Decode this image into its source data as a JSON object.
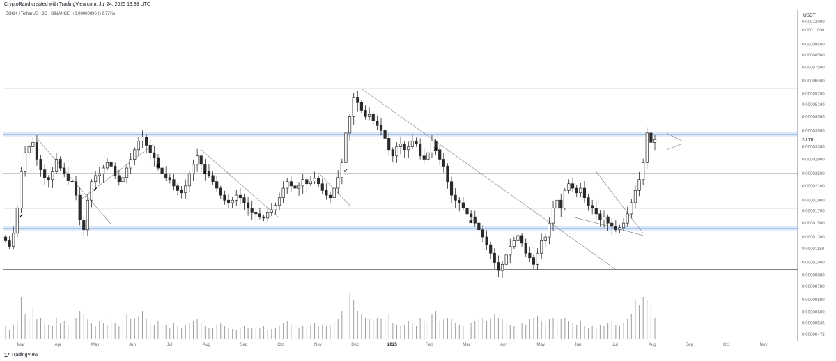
{
  "header": {
    "author_line": "CryptoRand created with TradingView.com, Jul 24, 2025 13:39 UTC"
  },
  "legend": {
    "symbol_line": "BONK / TetherUS · 3D · BINANCE",
    "change": "+0.00000096 (+2.77%)"
  },
  "footer": {
    "logo": "17",
    "brand": "TradingView"
  },
  "colors": {
    "bull": "#ffffff",
    "bear": "#2a2a2a",
    "wick": "#2a2a2a",
    "level_blue": "#9ec1ee",
    "level_gray": "#6b6e78",
    "trend": "#8a8d96",
    "volume": "#9e9e9e"
  },
  "chart_data": {
    "type": "candlestick",
    "price_unit": "USDT",
    "time_range": [
      "2024-03",
      "2025-07-24"
    ],
    "y_axis_labels": [
      "0.00012000",
      "0.00011000",
      "0.00009500",
      "0.00008500",
      "0.00007500",
      "0.00006500",
      "0.00005700",
      "0.00005100",
      "0.00004500",
      "0.00003900",
      "0.00003300",
      "0.00002900",
      "0.00002500",
      "0.00002200",
      "0.00001900",
      "0.00001700",
      "0.00001500",
      "0.00001300",
      "0.00001150",
      "0.00001000",
      "0.00000880",
      "0.00000780",
      "0.00000680",
      "0.00000600",
      "0.00000535",
      "0.00000475"
    ],
    "x_axis_labels": [
      "Mar",
      "Apr",
      "May",
      "Jun",
      "Jul",
      "Aug",
      "Sep",
      "Oct",
      "Nov",
      "Dec",
      "2025",
      "Feb",
      "Mar",
      "Apr",
      "May",
      "Jun",
      "Jul",
      "Aug",
      "Sep",
      "Oct",
      "Nov"
    ],
    "x_axis_bold": "2025",
    "countdown": "2d 11h",
    "last_price": 3.55e-05,
    "horizontal_levels": [
      {
        "price": 6e-05,
        "style": "gray"
      },
      {
        "price": 3.75e-05,
        "style": "blue"
      },
      {
        "price": 2.5e-05,
        "style": "gray"
      },
      {
        "price": 1.75e-05,
        "style": "gray"
      },
      {
        "price": 1.42e-05,
        "style": "blue"
      },
      {
        "price": 9.3e-06,
        "style": "gray"
      }
    ],
    "closes": [
      1.25e-05,
      1.18e-05,
      1.35e-05,
      1.75e-05,
      2.55e-05,
      3.1e-05,
      3.3e-05,
      3.45e-05,
      2.9e-05,
      2.6e-05,
      2.4e-05,
      2.35e-05,
      2.55e-05,
      2.9e-05,
      2.65e-05,
      2.5e-05,
      2.32e-05,
      2.3e-05,
      2e-05,
      1.55e-05,
      1.4e-05,
      1.9e-05,
      2.3e-05,
      2.45e-05,
      2.5e-05,
      2.65e-05,
      2.8e-05,
      2.7e-05,
      2.45e-05,
      2.3e-05,
      2.4e-05,
      2.65e-05,
      2.9e-05,
      3.2e-05,
      3.5e-05,
      3.65e-05,
      3.35e-05,
      3.1e-05,
      2.95e-05,
      2.65e-05,
      2.5e-05,
      2.4e-05,
      2.35e-05,
      2.2e-05,
      2.1e-05,
      2.05e-05,
      2.2e-05,
      2.5e-05,
      2.75e-05,
      3e-05,
      2.75e-05,
      2.55e-05,
      2.45e-05,
      2.3e-05,
      2.15e-05,
      2e-05,
      1.9e-05,
      1.85e-05,
      1.9e-05,
      2e-05,
      1.95e-05,
      1.85e-05,
      1.75e-05,
      1.68e-05,
      1.65e-05,
      1.6e-05,
      1.58e-05,
      1.68e-05,
      1.72e-05,
      1.8e-05,
      1.95e-05,
      2.15e-05,
      2.3e-05,
      2.2e-05,
      2.15e-05,
      2.2e-05,
      2.35e-05,
      2.25e-05,
      2.32e-05,
      2.38e-05,
      2.25e-05,
      2.1e-05,
      2e-05,
      1.95e-05,
      2.15e-05,
      2.4e-05,
      2.8e-05,
      3.8e-05,
      4.5e-05,
      5.5e-05,
      5.2e-05,
      4.8e-05,
      4.5e-05,
      4.6e-05,
      4.3e-05,
      4.1e-05,
      3.9e-05,
      3.6e-05,
      3.2e-05,
      3e-05,
      3.3e-05,
      3.4e-05,
      3.2e-05,
      3.3e-05,
      3.5e-05,
      3.4e-05,
      3e-05,
      2.9e-05,
      3.1e-05,
      3.5e-05,
      3.2e-05,
      2.9e-05,
      2.7e-05,
      2.3e-05,
      2e-05,
      1.9e-05,
      1.85e-05,
      1.75e-05,
      1.65e-05,
      1.6e-05,
      1.5e-05,
      1.4e-05,
      1.3e-05,
      1.2e-05,
      1.1e-05,
      1e-05,
      9.2e-06,
      9.8e-06,
      1.08e-05,
      1.18e-05,
      1.25e-05,
      1.32e-05,
      1.22e-05,
      1.1e-05,
      1.05e-05,
      9.8e-06,
      1.1e-05,
      1.25e-05,
      1.3e-05,
      1.5e-05,
      1.75e-05,
      1.9e-05,
      1.75e-05,
      2.1e-05,
      2.25e-05,
      2.15e-05,
      2.05e-05,
      2.15e-05,
      1.95e-05,
      1.8e-05,
      1.75e-05,
      1.65e-05,
      1.55e-05,
      1.6e-05,
      1.5e-05,
      1.45e-05,
      1.4e-05,
      1.43e-05,
      1.5e-05,
      1.65e-05,
      1.85e-05,
      2.1e-05,
      2.35e-05,
      2.8e-05,
      3.8e-05,
      3.45e-05,
      3.55e-05
    ],
    "volume_relative": [
      0.18,
      0.12,
      0.2,
      0.25,
      0.6,
      0.35,
      0.3,
      0.45,
      0.28,
      0.3,
      0.22,
      0.2,
      0.18,
      0.3,
      0.22,
      0.25,
      0.2,
      0.22,
      0.3,
      0.4,
      0.35,
      0.28,
      0.22,
      0.18,
      0.25,
      0.22,
      0.2,
      0.3,
      0.22,
      0.18,
      0.25,
      0.35,
      0.28,
      0.3,
      0.32,
      0.4,
      0.28,
      0.22,
      0.2,
      0.25,
      0.18,
      0.2,
      0.15,
      0.22,
      0.18,
      0.16,
      0.2,
      0.22,
      0.25,
      0.28,
      0.22,
      0.18,
      0.16,
      0.15,
      0.2,
      0.22,
      0.18,
      0.15,
      0.14,
      0.12,
      0.15,
      0.18,
      0.16,
      0.15,
      0.14,
      0.15,
      0.18,
      0.12,
      0.14,
      0.15,
      0.18,
      0.22,
      0.25,
      0.2,
      0.18,
      0.16,
      0.18,
      0.15,
      0.2,
      0.22,
      0.18,
      0.2,
      0.18,
      0.2,
      0.25,
      0.28,
      0.4,
      0.6,
      0.65,
      0.55,
      0.4,
      0.35,
      0.3,
      0.28,
      0.25,
      0.3,
      0.28,
      0.3,
      0.35,
      0.22,
      0.2,
      0.18,
      0.2,
      0.25,
      0.22,
      0.18,
      0.3,
      0.25,
      0.22,
      0.35,
      0.4,
      0.25,
      0.28,
      0.3,
      0.28,
      0.22,
      0.2,
      0.18,
      0.2,
      0.22,
      0.25,
      0.28,
      0.3,
      0.25,
      0.28,
      0.35,
      0.3,
      0.28,
      0.22,
      0.2,
      0.18,
      0.25,
      0.22,
      0.2,
      0.28,
      0.3,
      0.32,
      0.25,
      0.22,
      0.28,
      0.3,
      0.25,
      0.28,
      0.3,
      0.25,
      0.22,
      0.2,
      0.25,
      0.18,
      0.16,
      0.18,
      0.15,
      0.2,
      0.18,
      0.22,
      0.25,
      0.2,
      0.18,
      0.22,
      0.28,
      0.35,
      0.55,
      0.48,
      0.6,
      0.55,
      0.48,
      0.3
    ],
    "markers": [
      {
        "symbol": "✔",
        "bar": 3
      },
      {
        "symbol": "✔",
        "bar": 22
      },
      {
        "symbol": "✖",
        "bar": 38
      },
      {
        "symbol": "✖",
        "bar": 50
      },
      {
        "symbol": "✔",
        "bar": 86
      },
      {
        "symbol": "✖",
        "bar": 109
      },
      {
        "symbol": "✖",
        "bar": 118
      }
    ],
    "trendlines": [
      {
        "from": [
          8,
          3.6e-05
        ],
        "to": [
          27,
          1.48e-05
        ]
      },
      {
        "from": [
          19,
          1.9e-05
        ],
        "to": [
          38,
          3.4e-05
        ]
      },
      {
        "from": [
          50,
          3.2e-05
        ],
        "to": [
          70,
          1.58e-05
        ]
      },
      {
        "from": [
          80,
          2.52e-05
        ],
        "to": [
          88,
          1.8e-05
        ]
      },
      {
        "from": [
          91,
          6e-05
        ],
        "to": [
          156,
          9.3e-06
        ]
      },
      {
        "from": [
          151,
          2.55e-05
        ],
        "to": [
          163,
          1.35e-05
        ]
      },
      {
        "from": [
          145,
          1.6e-05
        ],
        "to": [
          163,
          1.32e-05
        ]
      },
      {
        "from": [
          169,
          3.8e-05
        ],
        "to": [
          173,
          3.5e-05
        ]
      },
      {
        "from": [
          169,
          3.2e-05
        ],
        "to": [
          173,
          3.4e-05
        ]
      }
    ]
  }
}
